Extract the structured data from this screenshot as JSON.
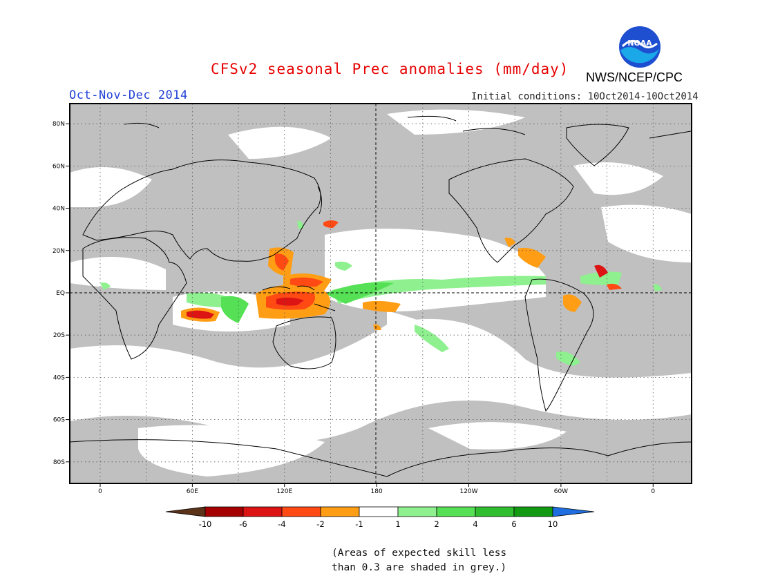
{
  "header": {
    "title": "CFSv2 seasonal Prec anomalies (mm/day)",
    "season": "Oct-Nov-Dec 2014",
    "initial_conditions": "Initial conditions: 10Oct2014-10Oct2014",
    "agency": "NWS/NCEP/CPC",
    "logo_text": "NOAA"
  },
  "colors": {
    "title": "#e60000",
    "season": "#1f3fd6",
    "ocean_grey": "#c0c0c0",
    "no_skill_white": "#ffffff",
    "neg_10": "#5a3318",
    "neg_6": "#a50000",
    "neg_4": "#dc1414",
    "neg_2": "#ff4a14",
    "neg_1": "#ff9d14",
    "near_zero": "#ffffff",
    "pos_1": "#8ef08e",
    "pos_2": "#55e055",
    "pos_4": "#2fbe2f",
    "pos_6": "#129b12",
    "pos_10": "#1e6ee0"
  },
  "map": {
    "lat_labels": [
      "80N",
      "60N",
      "40N",
      "20N",
      "EQ",
      "20S",
      "40S",
      "60S",
      "80S"
    ],
    "lon_labels": [
      "0",
      "60E",
      "120E",
      "180",
      "120W",
      "60W",
      "0"
    ]
  },
  "colorbar": {
    "tick_labels": [
      "-10",
      "-6",
      "-4",
      "-2",
      "-1",
      "1",
      "2",
      "4",
      "6",
      "10"
    ]
  },
  "footnote": {
    "line1": "(Areas of expected skill less",
    "line2": "than 0.3 are shaded in grey.)"
  }
}
